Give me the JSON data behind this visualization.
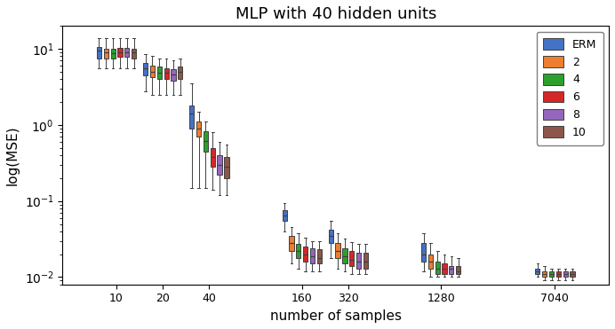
{
  "title": "MLP with 40 hidden units",
  "xlabel": "number of samples",
  "ylabel": "log(MSE)",
  "x_tick_labels": [
    "10",
    "20",
    "40",
    "160",
    "320",
    "1280",
    "7040"
  ],
  "x_tick_values": [
    10,
    20,
    40,
    160,
    320,
    1280,
    7040
  ],
  "series_labels": [
    "ERM",
    "2",
    "4",
    "6",
    "8",
    "10"
  ],
  "series_colors": [
    "#4472C4",
    "#ED7D31",
    "#2CA02C",
    "#D62728",
    "#9467BD",
    "#8C564B"
  ],
  "box_data": {
    "ERM": {
      "10": {
        "q1": 7.5,
        "median": 9.5,
        "q3": 10.5,
        "whislo": 5.5,
        "whishi": 14.0
      },
      "20": {
        "q1": 4.5,
        "median": 5.5,
        "q3": 6.5,
        "whislo": 2.8,
        "whishi": 8.5
      },
      "40": {
        "q1": 0.9,
        "median": 1.4,
        "q3": 1.8,
        "whislo": 0.15,
        "whishi": 3.5
      },
      "160": {
        "q1": 0.055,
        "median": 0.065,
        "q3": 0.075,
        "whislo": 0.04,
        "whishi": 0.095
      },
      "320": {
        "q1": 0.028,
        "median": 0.035,
        "q3": 0.042,
        "whislo": 0.018,
        "whishi": 0.055
      },
      "1280": {
        "q1": 0.016,
        "median": 0.02,
        "q3": 0.028,
        "whislo": 0.012,
        "whishi": 0.038
      },
      "7040": {
        "q1": 0.011,
        "median": 0.012,
        "q3": 0.013,
        "whislo": 0.01,
        "whishi": 0.015
      }
    },
    "2": {
      "10": {
        "q1": 7.5,
        "median": 9.0,
        "q3": 10.0,
        "whislo": 5.5,
        "whishi": 14.0
      },
      "20": {
        "q1": 4.2,
        "median": 5.0,
        "q3": 6.0,
        "whislo": 2.5,
        "whishi": 8.0
      },
      "40": {
        "q1": 0.7,
        "median": 0.9,
        "q3": 1.1,
        "whislo": 0.15,
        "whishi": 1.5
      },
      "160": {
        "q1": 0.022,
        "median": 0.028,
        "q3": 0.035,
        "whislo": 0.015,
        "whishi": 0.045
      },
      "320": {
        "q1": 0.018,
        "median": 0.022,
        "q3": 0.028,
        "whislo": 0.013,
        "whishi": 0.038
      },
      "1280": {
        "q1": 0.013,
        "median": 0.016,
        "q3": 0.02,
        "whislo": 0.01,
        "whishi": 0.028
      },
      "7040": {
        "q1": 0.01,
        "median": 0.011,
        "q3": 0.012,
        "whislo": 0.009,
        "whishi": 0.014
      }
    },
    "4": {
      "10": {
        "q1": 7.5,
        "median": 8.8,
        "q3": 10.0,
        "whislo": 5.5,
        "whishi": 14.0
      },
      "20": {
        "q1": 4.0,
        "median": 4.8,
        "q3": 5.8,
        "whislo": 2.5,
        "whishi": 7.5
      },
      "40": {
        "q1": 0.45,
        "median": 0.62,
        "q3": 0.82,
        "whislo": 0.15,
        "whishi": 1.1
      },
      "160": {
        "q1": 0.018,
        "median": 0.022,
        "q3": 0.027,
        "whislo": 0.013,
        "whishi": 0.038
      },
      "320": {
        "q1": 0.015,
        "median": 0.019,
        "q3": 0.024,
        "whislo": 0.012,
        "whishi": 0.032
      },
      "1280": {
        "q1": 0.011,
        "median": 0.013,
        "q3": 0.016,
        "whislo": 0.01,
        "whishi": 0.022
      },
      "7040": {
        "q1": 0.01,
        "median": 0.011,
        "q3": 0.012,
        "whislo": 0.009,
        "whishi": 0.013
      }
    },
    "6": {
      "10": {
        "q1": 7.8,
        "median": 9.0,
        "q3": 10.2,
        "whislo": 5.5,
        "whishi": 14.0
      },
      "20": {
        "q1": 4.0,
        "median": 4.8,
        "q3": 5.6,
        "whislo": 2.5,
        "whishi": 7.5
      },
      "40": {
        "q1": 0.28,
        "median": 0.38,
        "q3": 0.5,
        "whislo": 0.14,
        "whishi": 0.8
      },
      "160": {
        "q1": 0.016,
        "median": 0.02,
        "q3": 0.025,
        "whislo": 0.012,
        "whishi": 0.033
      },
      "320": {
        "q1": 0.014,
        "median": 0.017,
        "q3": 0.022,
        "whislo": 0.011,
        "whishi": 0.029
      },
      "1280": {
        "q1": 0.011,
        "median": 0.013,
        "q3": 0.015,
        "whislo": 0.01,
        "whishi": 0.02
      },
      "7040": {
        "q1": 0.01,
        "median": 0.011,
        "q3": 0.012,
        "whislo": 0.009,
        "whishi": 0.013
      }
    },
    "8": {
      "10": {
        "q1": 7.8,
        "median": 9.0,
        "q3": 10.2,
        "whislo": 5.5,
        "whishi": 14.0
      },
      "20": {
        "q1": 3.8,
        "median": 4.6,
        "q3": 5.4,
        "whislo": 2.5,
        "whishi": 7.0
      },
      "40": {
        "q1": 0.22,
        "median": 0.3,
        "q3": 0.4,
        "whislo": 0.12,
        "whishi": 0.6
      },
      "160": {
        "q1": 0.015,
        "median": 0.019,
        "q3": 0.024,
        "whislo": 0.012,
        "whishi": 0.03
      },
      "320": {
        "q1": 0.013,
        "median": 0.016,
        "q3": 0.021,
        "whislo": 0.011,
        "whishi": 0.027
      },
      "1280": {
        "q1": 0.011,
        "median": 0.013,
        "q3": 0.014,
        "whislo": 0.01,
        "whishi": 0.019
      },
      "7040": {
        "q1": 0.01,
        "median": 0.011,
        "q3": 0.012,
        "whislo": 0.009,
        "whishi": 0.013
      }
    },
    "10": {
      "10": {
        "q1": 7.5,
        "median": 9.0,
        "q3": 10.0,
        "whislo": 5.5,
        "whishi": 14.0
      },
      "20": {
        "q1": 4.0,
        "median": 5.0,
        "q3": 5.8,
        "whislo": 2.5,
        "whishi": 7.5
      },
      "40": {
        "q1": 0.2,
        "median": 0.28,
        "q3": 0.38,
        "whislo": 0.12,
        "whishi": 0.55
      },
      "160": {
        "q1": 0.015,
        "median": 0.018,
        "q3": 0.023,
        "whislo": 0.012,
        "whishi": 0.03
      },
      "320": {
        "q1": 0.013,
        "median": 0.016,
        "q3": 0.021,
        "whislo": 0.011,
        "whishi": 0.027
      },
      "1280": {
        "q1": 0.011,
        "median": 0.012,
        "q3": 0.014,
        "whislo": 0.01,
        "whishi": 0.018
      },
      "7040": {
        "q1": 0.01,
        "median": 0.011,
        "q3": 0.012,
        "whislo": 0.009,
        "whishi": 0.013
      }
    }
  }
}
